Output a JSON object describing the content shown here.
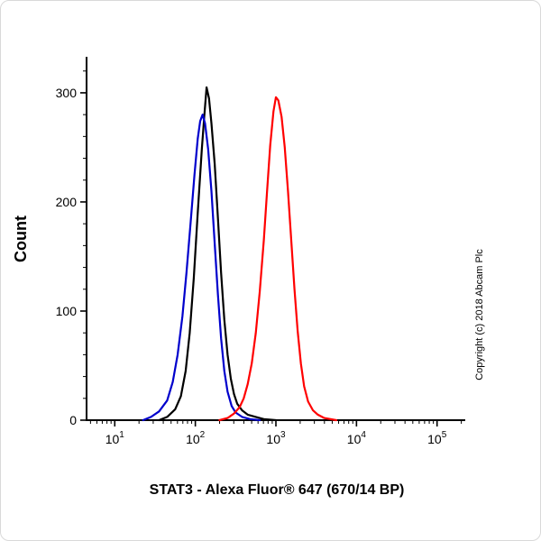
{
  "figure": {
    "ylabel": "Count",
    "xlabel": "STAT3 - Alexa Fluor® 647 (670/14 BP)",
    "copyright": "Copyright (c) 2018 Abcam Plc"
  },
  "chart_data": {
    "type": "line",
    "subtype": "flow-cytometry-histogram",
    "title": "",
    "xlabel": "STAT3 - Alexa Fluor® 647 (670/14 BP)",
    "ylabel": "Count",
    "x_scale": "log10",
    "xlim_log10": [
      0.65,
      5.35
    ],
    "ylim": [
      0,
      333
    ],
    "x_major_ticks": [
      10,
      100,
      1000,
      10000,
      100000
    ],
    "x_major_tick_labels": [
      "10^1",
      "10^2",
      "10^3",
      "10^4",
      "10^5"
    ],
    "y_major_ticks": [
      0,
      100,
      200,
      300
    ],
    "y_minor_step": 20,
    "grid": false,
    "legend": null,
    "series": [
      {
        "name": "black",
        "color": "#000000",
        "peak": {
          "x_approx": 140,
          "count": 305
        },
        "points": [
          [
            1.55,
            0
          ],
          [
            1.65,
            3
          ],
          [
            1.75,
            10
          ],
          [
            1.82,
            22
          ],
          [
            1.88,
            45
          ],
          [
            1.93,
            80
          ],
          [
            1.98,
            130
          ],
          [
            2.03,
            190
          ],
          [
            2.08,
            248
          ],
          [
            2.11,
            278
          ],
          [
            2.14,
            305
          ],
          [
            2.17,
            295
          ],
          [
            2.2,
            272
          ],
          [
            2.24,
            235
          ],
          [
            2.28,
            185
          ],
          [
            2.32,
            135
          ],
          [
            2.36,
            92
          ],
          [
            2.4,
            60
          ],
          [
            2.44,
            38
          ],
          [
            2.48,
            24
          ],
          [
            2.52,
            15
          ],
          [
            2.58,
            9
          ],
          [
            2.65,
            5
          ],
          [
            2.75,
            3
          ],
          [
            2.85,
            1
          ],
          [
            3.0,
            0
          ]
        ]
      },
      {
        "name": "blue",
        "color": "#0000cc",
        "peak": {
          "x_approx": 120,
          "count": 280
        },
        "points": [
          [
            1.35,
            0
          ],
          [
            1.45,
            3
          ],
          [
            1.55,
            8
          ],
          [
            1.65,
            18
          ],
          [
            1.72,
            35
          ],
          [
            1.78,
            60
          ],
          [
            1.84,
            95
          ],
          [
            1.89,
            135
          ],
          [
            1.94,
            180
          ],
          [
            1.99,
            225
          ],
          [
            2.03,
            258
          ],
          [
            2.06,
            274
          ],
          [
            2.09,
            280
          ],
          [
            2.12,
            272
          ],
          [
            2.16,
            248
          ],
          [
            2.2,
            210
          ],
          [
            2.24,
            162
          ],
          [
            2.28,
            115
          ],
          [
            2.32,
            75
          ],
          [
            2.36,
            45
          ],
          [
            2.4,
            26
          ],
          [
            2.45,
            13
          ],
          [
            2.5,
            7
          ],
          [
            2.58,
            3
          ],
          [
            2.68,
            1
          ],
          [
            2.8,
            0
          ]
        ]
      },
      {
        "name": "red",
        "color": "#ff0000",
        "peak": {
          "x_approx": 1000,
          "count": 297
        },
        "points": [
          [
            2.3,
            0
          ],
          [
            2.4,
            2
          ],
          [
            2.48,
            6
          ],
          [
            2.55,
            12
          ],
          [
            2.6,
            20
          ],
          [
            2.65,
            33
          ],
          [
            2.7,
            52
          ],
          [
            2.75,
            80
          ],
          [
            2.8,
            118
          ],
          [
            2.85,
            165
          ],
          [
            2.89,
            210
          ],
          [
            2.93,
            252
          ],
          [
            2.97,
            283
          ],
          [
            3.0,
            296
          ],
          [
            3.03,
            293
          ],
          [
            3.07,
            278
          ],
          [
            3.11,
            250
          ],
          [
            3.15,
            210
          ],
          [
            3.19,
            165
          ],
          [
            3.23,
            120
          ],
          [
            3.27,
            82
          ],
          [
            3.31,
            52
          ],
          [
            3.35,
            31
          ],
          [
            3.4,
            17
          ],
          [
            3.46,
            9
          ],
          [
            3.52,
            5
          ],
          [
            3.6,
            2
          ],
          [
            3.75,
            0
          ]
        ]
      }
    ]
  }
}
